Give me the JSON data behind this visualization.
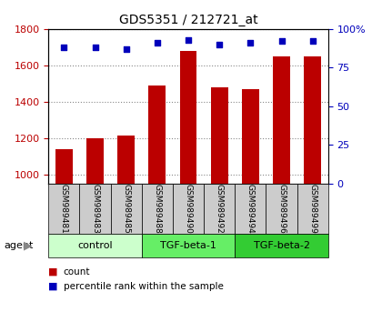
{
  "title": "GDS5351 / 212721_at",
  "samples": [
    "GSM989481",
    "GSM989483",
    "GSM989485",
    "GSM989488",
    "GSM989490",
    "GSM989492",
    "GSM989494",
    "GSM989496",
    "GSM989499"
  ],
  "counts": [
    1140,
    1200,
    1215,
    1490,
    1680,
    1480,
    1470,
    1650,
    1650
  ],
  "percentile_ranks": [
    88,
    88,
    87,
    91,
    93,
    90,
    91,
    92,
    92
  ],
  "groups": [
    {
      "label": "control",
      "indices": [
        0,
        1,
        2
      ],
      "color": "#ccffcc"
    },
    {
      "label": "TGF-beta-1",
      "indices": [
        3,
        4,
        5
      ],
      "color": "#66ee66"
    },
    {
      "label": "TGF-beta-2",
      "indices": [
        6,
        7,
        8
      ],
      "color": "#33cc33"
    }
  ],
  "ylim_left": [
    950,
    1800
  ],
  "ylim_right": [
    0,
    100
  ],
  "yticks_left": [
    1000,
    1200,
    1400,
    1600,
    1800
  ],
  "yticks_right": [
    0,
    25,
    50,
    75,
    100
  ],
  "bar_color": "#bb0000",
  "dot_color": "#0000bb",
  "bar_width": 0.55,
  "sample_box_color": "#cccccc",
  "grid_color": "#888888",
  "legend_items": [
    "count",
    "percentile rank within the sample"
  ]
}
